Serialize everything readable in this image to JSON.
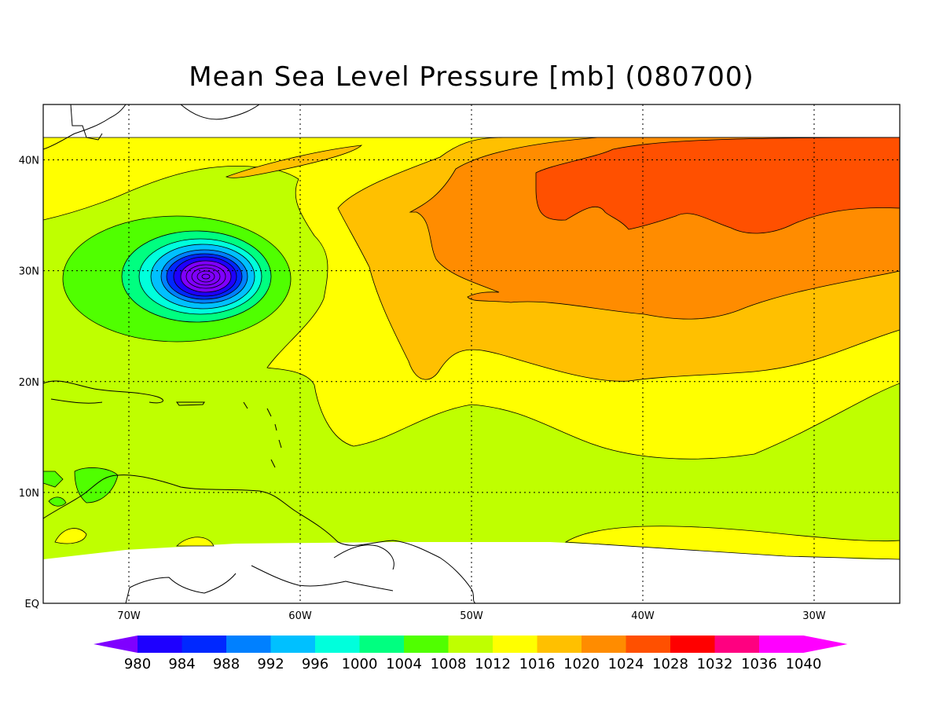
{
  "title": "Mean Sea Level Pressure [mb] (080700)",
  "map": {
    "lon_range": [
      -75,
      -25
    ],
    "lat_range": [
      0,
      45
    ],
    "lon_ticks": [
      {
        "value": -70,
        "label": "70W"
      },
      {
        "value": -60,
        "label": "60W"
      },
      {
        "value": -50,
        "label": "50W"
      },
      {
        "value": -40,
        "label": "40W"
      },
      {
        "value": -30,
        "label": "30W"
      }
    ],
    "lat_ticks": [
      {
        "value": 0,
        "label": "EQ"
      },
      {
        "value": 10,
        "label": "10N"
      },
      {
        "value": 20,
        "label": "20N"
      },
      {
        "value": 30,
        "label": "30N"
      },
      {
        "value": 40,
        "label": "40N"
      }
    ],
    "grid": "dotted",
    "low_center": {
      "lon": -65.5,
      "lat": 29.5,
      "min_pressure": 980
    }
  },
  "colorbar": {
    "levels": [
      "980",
      "984",
      "988",
      "992",
      "996",
      "1000",
      "1004",
      "1008",
      "1012",
      "1016",
      "1020",
      "1024",
      "1028",
      "1032",
      "1036",
      "1040"
    ],
    "colors": [
      "#7f00ff",
      "#1e00ff",
      "#0028ff",
      "#0080ff",
      "#00c0ff",
      "#00ffdc",
      "#00ff80",
      "#50ff00",
      "#bfff00",
      "#ffff00",
      "#ffc000",
      "#ff8c00",
      "#ff5000",
      "#ff0000",
      "#ff0080",
      "#ff00ff",
      "#ff00ff"
    ]
  }
}
